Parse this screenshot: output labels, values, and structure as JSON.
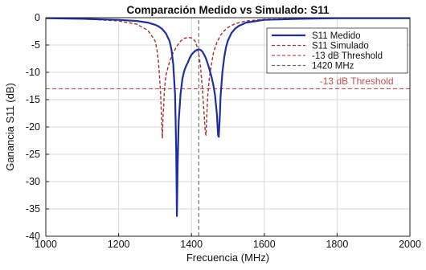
{
  "chart_data": {
    "type": "line",
    "title": "Comparación Medido vs Simulado: S11",
    "xlabel": "Frecuencia (MHz)",
    "ylabel": "Ganancia S11 (dB)",
    "xlim": [
      1000,
      2000
    ],
    "ylim": [
      -40,
      0
    ],
    "xticks": [
      1000,
      1200,
      1400,
      1600,
      1800,
      2000
    ],
    "yticks": [
      0,
      -5,
      -10,
      -15,
      -20,
      -25,
      -30,
      -35,
      -40
    ],
    "grid": true,
    "legend_position": "top-right",
    "series": [
      {
        "name": "S11 Medido",
        "color": "#1f2f9e",
        "style": "solid",
        "x": [
          1000,
          1100,
          1200,
          1250,
          1280,
          1300,
          1310,
          1320,
          1330,
          1340,
          1345,
          1350,
          1355,
          1358,
          1360,
          1362,
          1365,
          1370,
          1375,
          1380,
          1385,
          1390,
          1395,
          1400,
          1405,
          1410,
          1415,
          1420,
          1425,
          1430,
          1435,
          1440,
          1445,
          1450,
          1455,
          1460,
          1465,
          1470,
          1473,
          1475,
          1478,
          1480,
          1485,
          1490,
          1495,
          1500,
          1510,
          1520,
          1530,
          1550,
          1600,
          1700,
          1800,
          1900,
          2000
        ],
        "y": [
          -0.1,
          -0.2,
          -0.4,
          -0.6,
          -0.9,
          -1.3,
          -1.6,
          -2.1,
          -2.9,
          -4.3,
          -5.8,
          -8.5,
          -14,
          -24,
          -36.3,
          -27,
          -19,
          -14,
          -11.2,
          -9.8,
          -8.9,
          -8.2,
          -7.4,
          -6.8,
          -6.4,
          -6.1,
          -5.9,
          -5.8,
          -5.9,
          -6.2,
          -6.8,
          -7.5,
          -8.5,
          -9.6,
          -10.8,
          -12.3,
          -14.3,
          -17.8,
          -21.5,
          -21.8,
          -18,
          -14.5,
          -10,
          -7.2,
          -5.4,
          -4.2,
          -2.8,
          -2,
          -1.5,
          -0.9,
          -0.4,
          -0.2,
          -0.1,
          -0.1,
          -0.1
        ]
      },
      {
        "name": "S11 Simulado",
        "color": "#a3312f",
        "style": "dashed",
        "x": [
          1000,
          1100,
          1200,
          1250,
          1280,
          1300,
          1305,
          1310,
          1315,
          1318,
          1320,
          1322,
          1326,
          1330,
          1340,
          1350,
          1360,
          1370,
          1380,
          1390,
          1400,
          1410,
          1415,
          1420,
          1425,
          1430,
          1435,
          1438,
          1440,
          1442,
          1445,
          1450,
          1460,
          1470,
          1480,
          1490,
          1500,
          1520,
          1550,
          1600,
          1700,
          1800,
          1900,
          2000
        ],
        "y": [
          -0.1,
          -0.2,
          -0.6,
          -1.2,
          -2.3,
          -4.2,
          -5.8,
          -8.5,
          -13.5,
          -19,
          -22,
          -18,
          -13,
          -10.5,
          -8,
          -6.4,
          -5.2,
          -4.3,
          -3.8,
          -3.6,
          -3.7,
          -4.3,
          -5.2,
          -6.6,
          -9,
          -13,
          -18,
          -21,
          -21.5,
          -18,
          -14,
          -10.5,
          -6.5,
          -4.5,
          -3.2,
          -2.4,
          -1.8,
          -1.1,
          -0.6,
          -0.3,
          -0.1,
          -0.1,
          -0.1,
          -0.1
        ]
      },
      {
        "name": "-13 dB Threshold",
        "color": "#c0504d",
        "style": "dashed",
        "x": [
          1000,
          2000
        ],
        "y": [
          -13,
          -13
        ]
      },
      {
        "name": "1420 MHz",
        "color": "#6a6a6a",
        "style": "dashed",
        "x": [
          1420,
          1420
        ],
        "y": [
          -40,
          0
        ]
      }
    ],
    "annotations": [
      {
        "text": "-13 dB Threshold",
        "x": 1955,
        "y": -12.2,
        "color": "#c0504d"
      }
    ]
  }
}
